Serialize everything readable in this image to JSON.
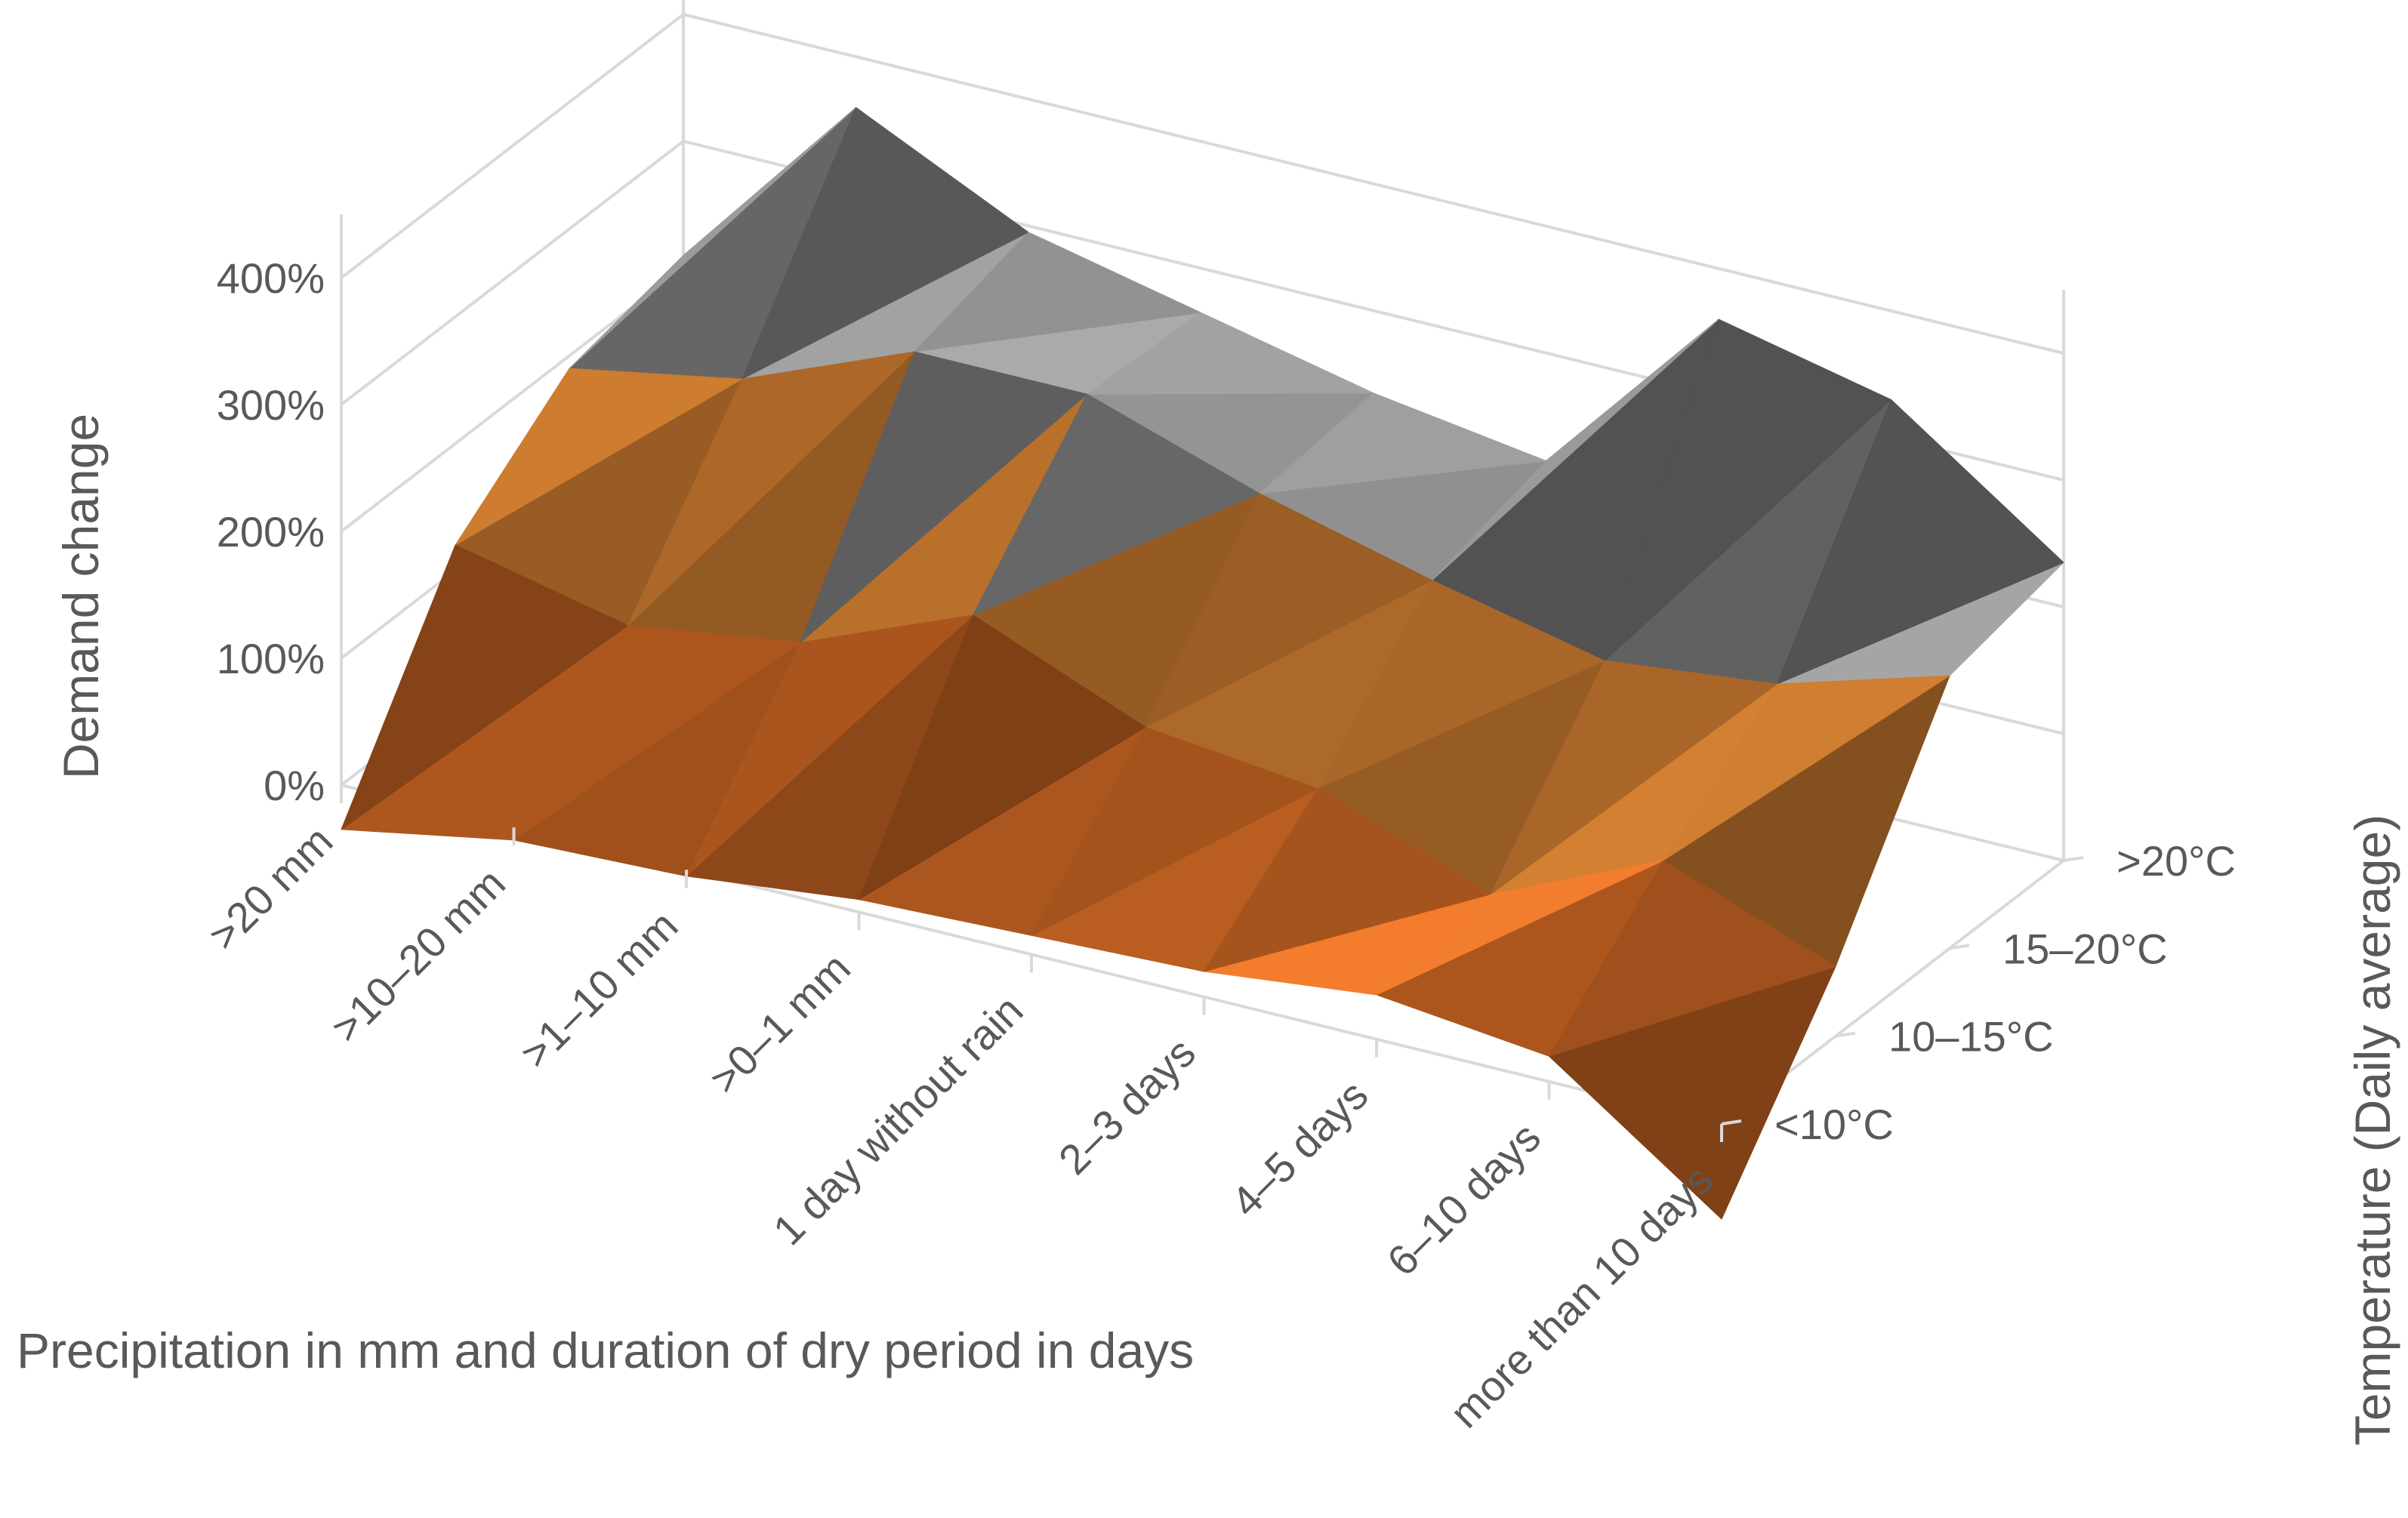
{
  "chart_data": {
    "type": "surface",
    "title": "",
    "xlabel": "Precipitation in mm and duration of dry period in days",
    "ylabel": "Temperature (Daily average)",
    "zlabel": "Demand change",
    "x_categories": [
      ">20 mm",
      ">10–20 mm",
      ">1–10 mm",
      ">0–1 mm",
      "1 day without rain",
      "2–3 days",
      "4–5 days",
      "6–10 days",
      "more than 10 days"
    ],
    "y_categories": [
      "<10°C",
      "10–15°C",
      "15–20°C",
      ">20°C"
    ],
    "z_ticks": [
      "0%",
      "100%",
      "200%",
      "300%",
      "400%"
    ],
    "zlim": [
      0,
      4.5
    ],
    "values": [
      [
        -0.35,
        -0.1,
        -0.05,
        0.1,
        0.15,
        0.2,
        0.35,
        0.2,
        -0.75
      ],
      [
        1.2,
        0.9,
        1.1,
        1.65,
        1.1,
        0.95,
        0.45,
        1.05,
        0.55
      ],
      [
        1.9,
        2.15,
        2.7,
        2.7,
        2.25,
        1.9,
        1.6,
        1.75,
        2.15
      ],
      [
        2.1,
        3.6,
        2.95,
        2.65,
        2.35,
        2.15,
        3.6,
        3.3,
        2.35
      ]
    ],
    "color_bands": [
      {
        "range": "-100%–0%",
        "color": "#1565c0"
      },
      {
        "range": "0%–100%",
        "color": "#f37a2a"
      },
      {
        "range": "100%–200%",
        "color": "#ff9a3c"
      },
      {
        "range": "200%–300%",
        "color": "#a6a6a6"
      },
      {
        "range": "300%–400%",
        "color": "#bfbfbf"
      },
      {
        "range": "400%+",
        "color": "#ffc000"
      }
    ]
  }
}
